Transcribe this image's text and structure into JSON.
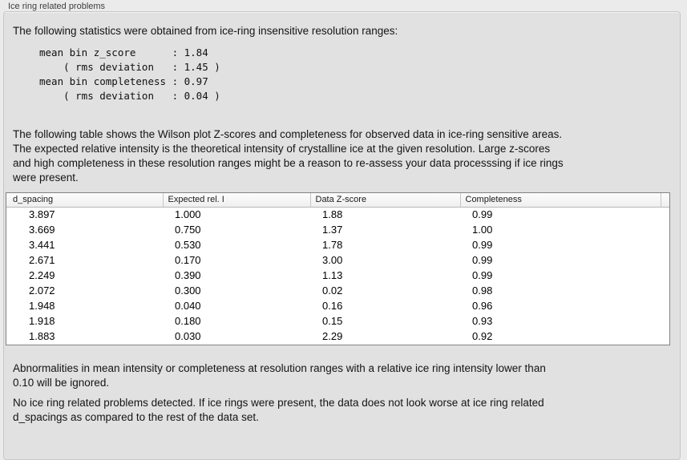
{
  "panel": {
    "title": "Ice ring related problems"
  },
  "intro": "The following statistics were obtained from ice-ring insensitive resolution ranges:",
  "stats_block": "mean bin z_score      : 1.84\n    ( rms deviation   : 1.45 )\nmean bin completeness : 0.97\n    ( rms deviation   : 0.04 )",
  "stats": {
    "mean_bin_z_score": "1.84",
    "z_score_rms_deviation": "1.45",
    "mean_bin_completeness": "0.97",
    "completeness_rms_deviation": "0.04"
  },
  "table_description": "The following table shows the Wilson plot Z-scores and completeness for observed data in ice-ring sensitive areas.\nThe expected relative intensity is the theoretical intensity of crystalline ice at the given resolution. Large z-scores\nand high completeness in these resolution ranges might be a reason to re-assess your data processsing if ice rings\nwere present.",
  "table": {
    "columns": [
      "d_spacing",
      "Expected rel. I",
      "Data Z-score",
      "Completeness"
    ],
    "rows": [
      [
        "3.897",
        "1.000",
        "1.88",
        "0.99"
      ],
      [
        "3.669",
        "0.750",
        "1.37",
        "1.00"
      ],
      [
        "3.441",
        "0.530",
        "1.78",
        "0.99"
      ],
      [
        "2.671",
        "0.170",
        "3.00",
        "0.99"
      ],
      [
        "2.249",
        "0.390",
        "1.13",
        "0.99"
      ],
      [
        "2.072",
        "0.300",
        "0.02",
        "0.98"
      ],
      [
        "1.948",
        "0.040",
        "0.16",
        "0.96"
      ],
      [
        "1.918",
        "0.180",
        "0.15",
        "0.93"
      ],
      [
        "1.883",
        "0.030",
        "2.29",
        "0.92"
      ]
    ]
  },
  "notes": {
    "ignore_note": "Abnormalities in mean intensity or completeness at resolution ranges with a relative ice ring intensity lower than\n0.10 will be ignored.",
    "conclusion": "No ice ring related problems detected. If ice rings were present, the data does not look worse at ice ring related\nd_spacings as compared to the rest of the data set."
  }
}
